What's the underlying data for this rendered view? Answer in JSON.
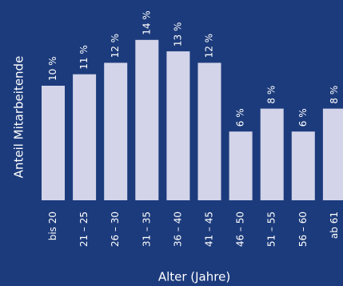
{
  "colors": {
    "background": "#1c3b7c",
    "bar": "#d3d4ea",
    "text": "#ffffff"
  },
  "chart_data": {
    "type": "bar",
    "title": "",
    "xlabel": "Alter (Jahre)",
    "ylabel": "Anteil Mitarbeitende",
    "ylim": [
      0,
      14
    ],
    "grid": false,
    "categories": [
      "bis 20",
      "21 – 25",
      "26 – 30",
      "31 – 35",
      "36 – 40",
      "41 – 45",
      "46 – 50",
      "51 – 55",
      "56 – 60",
      "ab 61"
    ],
    "values": [
      10,
      11,
      12,
      14,
      13,
      12,
      6,
      8,
      6,
      8
    ],
    "value_labels": [
      "10 %",
      "11 %",
      "12 %",
      "14 %",
      "13 %",
      "12 %",
      "6 %",
      "8 %",
      "6 %",
      "8 %"
    ]
  }
}
